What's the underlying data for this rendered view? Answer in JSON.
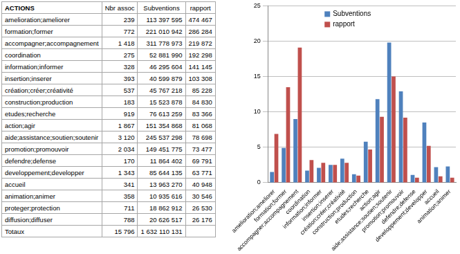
{
  "table": {
    "header": [
      "ACTIONS",
      "Nbr assoc",
      "Subventions",
      "rapport"
    ],
    "rows": [
      [
        "amelioration;ameliorer",
        "239",
        "113 397 595",
        "474 467"
      ],
      [
        "formation;former",
        "772",
        "221 010 942",
        "286 284"
      ],
      [
        "accompagner;accompagnement",
        "1 418",
        "311 778 973",
        "219 872"
      ],
      [
        "coordination",
        "275",
        "52 881 990",
        "192 298"
      ],
      [
        "information;informer",
        "328",
        "46 295 604",
        "141 145"
      ],
      [
        "insertion;inserer",
        "393",
        "40 599 879",
        "103 308"
      ],
      [
        "création;créer;créativité",
        "537",
        "45 767 218",
        "85 228"
      ],
      [
        "construction;production",
        "183",
        "15 523 878",
        "84 830"
      ],
      [
        "etudes;recherche",
        "919",
        "76 613 259",
        "83 366"
      ],
      [
        "action;agir",
        "1 867",
        "151 354 868",
        "81 068"
      ],
      [
        "aide;assistance;soutien;soutenir",
        "3 120",
        "245 537 298",
        "78 698"
      ],
      [
        "promotion;promouvoir",
        "2 034",
        "149 451 775",
        "73 477"
      ],
      [
        "defendre;defense",
        "170",
        "11 864 402",
        "69 791"
      ],
      [
        "developpement;developper",
        "1 343",
        "85 644 135",
        "63 771"
      ],
      [
        "accueil",
        "341",
        "13 963 270",
        "40 948"
      ],
      [
        "animation;animer",
        "358",
        "10 935 616",
        "30 546"
      ],
      [
        "proteger;protection",
        "711",
        "18 862 912",
        "26 530"
      ],
      [
        "diffusion;diffuser",
        "788",
        "20 626 517",
        "26 176"
      ]
    ],
    "footer": [
      "Totaux",
      "15 796",
      "1 632 110 131",
      null
    ]
  },
  "chart_data": {
    "type": "bar",
    "categories": [
      "amelioration;ameliorer",
      "formation;former",
      "accompagner;accompagnement",
      "coordination",
      "information;informer",
      "insertion;inserer",
      "création;créer;créativité",
      "construction;production",
      "etudes;recherche",
      "action;agir",
      "aide;assistance;soutien;soutenir",
      "promotion;promouvoir",
      "defendre;defense",
      "developpement;developper",
      "accueil",
      "animation;animer"
    ],
    "series": [
      {
        "name": "Subventions",
        "color": "#4F81BD",
        "values": [
          1.5,
          4.9,
          9.0,
          1.7,
          2.1,
          2.5,
          3.4,
          1.2,
          5.8,
          11.8,
          19.8,
          12.9,
          1.1,
          8.5,
          2.2,
          2.3
        ]
      },
      {
        "name": "rapport",
        "color": "#C0504D",
        "values": [
          6.9,
          13.5,
          19.1,
          3.2,
          2.8,
          2.5,
          2.8,
          1.0,
          4.7,
          9.3,
          15.0,
          9.2,
          0.7,
          5.2,
          0.9,
          0.7
        ]
      }
    ],
    "ylim": [
      0,
      25
    ],
    "yticks": [
      0,
      5,
      10,
      15,
      20,
      25
    ],
    "grid": true,
    "legend": "top-left"
  }
}
